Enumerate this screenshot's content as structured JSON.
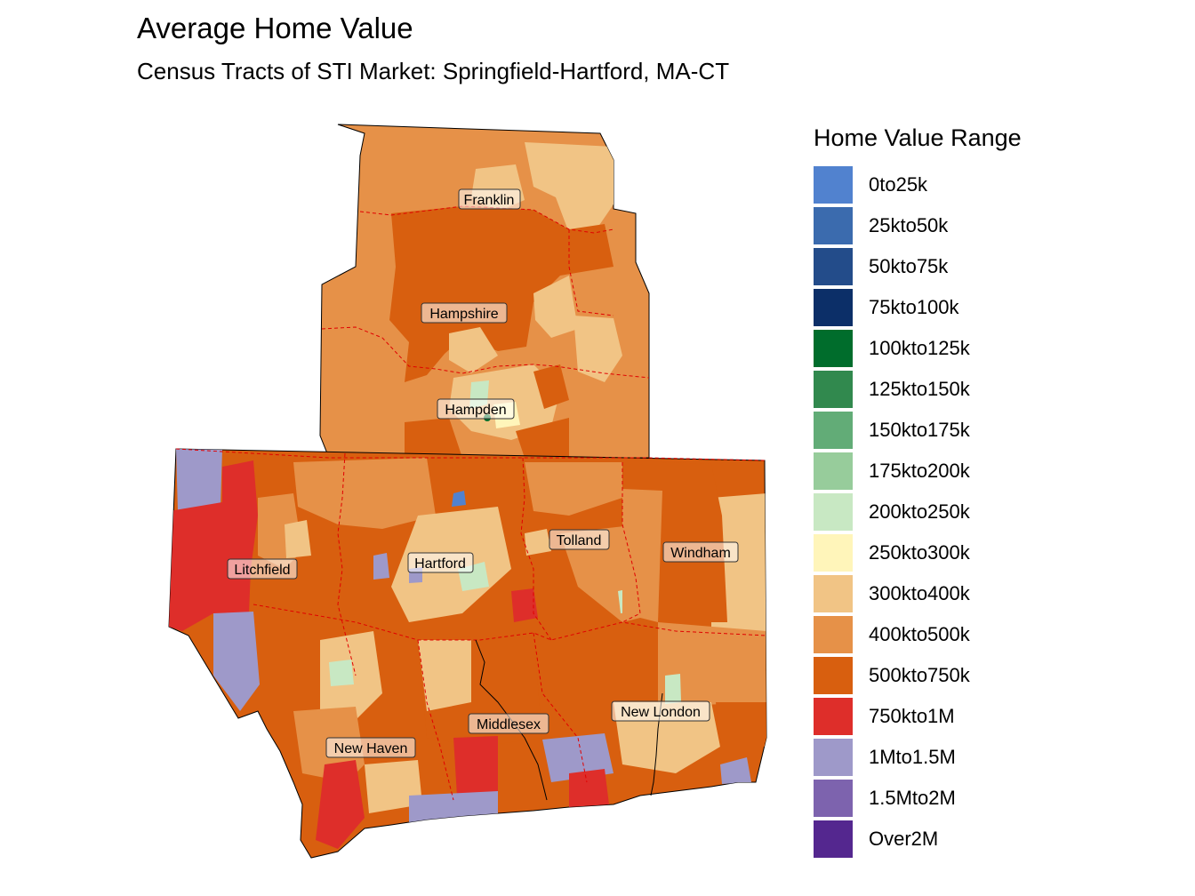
{
  "title": "Average Home Value",
  "subtitle": "Census Tracts of STI Market: Springfield-Hartford, MA-CT",
  "legend": {
    "title": "Home Value Range",
    "items": [
      {
        "label": "0to25k",
        "color": "#5182CF"
      },
      {
        "label": "25kto50k",
        "color": "#3B6BAE"
      },
      {
        "label": "50kto75k",
        "color": "#234C8A"
      },
      {
        "label": "75kto100k",
        "color": "#0C2F68"
      },
      {
        "label": "100kto125k",
        "color": "#006D2C"
      },
      {
        "label": "125kto150k",
        "color": "#31894E"
      },
      {
        "label": "150kto175k",
        "color": "#62AC77"
      },
      {
        "label": "175kto200k",
        "color": "#97CC9B"
      },
      {
        "label": "200kto250k",
        "color": "#C8E8C3"
      },
      {
        "label": "250kto300k",
        "color": "#FFF5BA"
      },
      {
        "label": "300kto400k",
        "color": "#F1C485"
      },
      {
        "label": "400kto500k",
        "color": "#E69148"
      },
      {
        "label": "500kto750k",
        "color": "#D85F0F"
      },
      {
        "label": "750kto1M",
        "color": "#DE2E2A"
      },
      {
        "label": "1Mto1.5M",
        "color": "#9E99C9"
      },
      {
        "label": "1.5Mto2M",
        "color": "#7D63AE"
      },
      {
        "label": "Over2M",
        "color": "#54278F"
      }
    ]
  },
  "counties": [
    {
      "name": "Franklin"
    },
    {
      "name": "Hampshire"
    },
    {
      "name": "Hampden"
    },
    {
      "name": "Litchfield"
    },
    {
      "name": "Hartford"
    },
    {
      "name": "Tolland"
    },
    {
      "name": "Windham"
    },
    {
      "name": "New Haven"
    },
    {
      "name": "Middlesex"
    },
    {
      "name": "New London"
    }
  ]
}
